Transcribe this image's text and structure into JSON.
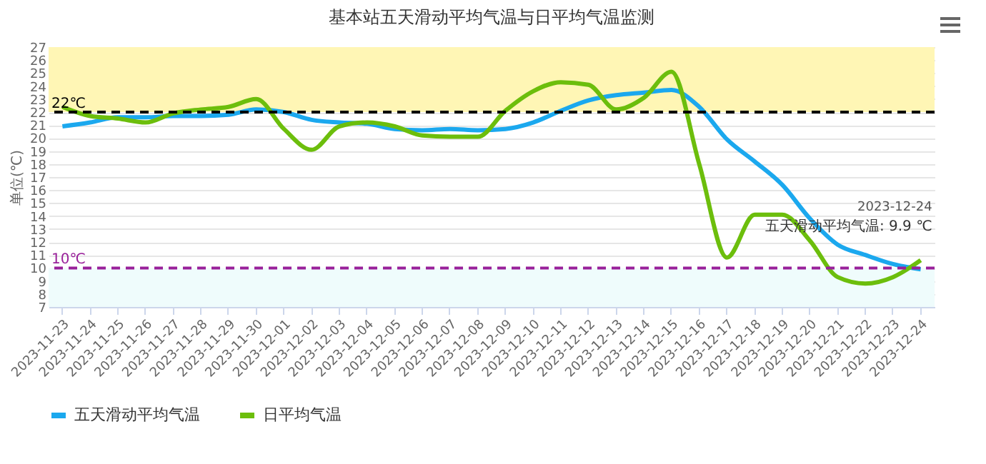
{
  "chart_data": {
    "type": "line",
    "title": "基本站五天滑动平均气温与日平均气温监测",
    "ylabel": "单位(℃)",
    "categories": [
      "2023-11-23",
      "2023-11-24",
      "2023-11-25",
      "2023-11-26",
      "2023-11-27",
      "2023-11-28",
      "2023-11-29",
      "2023-11-30",
      "2023-12-01",
      "2023-12-02",
      "2023-12-03",
      "2023-12-04",
      "2023-12-05",
      "2023-12-06",
      "2023-12-07",
      "2023-12-08",
      "2023-12-09",
      "2023-12-10",
      "2023-12-11",
      "2023-12-12",
      "2023-12-13",
      "2023-12-14",
      "2023-12-15",
      "2023-12-16",
      "2023-12-17",
      "2023-12-18",
      "2023-12-19",
      "2023-12-20",
      "2023-12-21",
      "2023-12-22",
      "2023-12-23",
      "2023-12-24"
    ],
    "series": [
      {
        "name": "五天滑动平均气温",
        "color": "#1ba8ee",
        "values": [
          20.9,
          21.2,
          21.6,
          21.6,
          21.7,
          21.7,
          21.8,
          22.2,
          22.0,
          21.4,
          21.2,
          21.1,
          20.7,
          20.6,
          20.7,
          20.6,
          20.7,
          21.2,
          22.1,
          22.9,
          23.3,
          23.5,
          23.7,
          22.4,
          19.9,
          18.2,
          16.4,
          13.8,
          11.8,
          11.0,
          10.3,
          9.9
        ]
      },
      {
        "name": "日平均气温",
        "color": "#6cbe0c",
        "values": [
          22.4,
          21.7,
          21.5,
          21.2,
          21.9,
          22.2,
          22.4,
          23.0,
          20.7,
          19.1,
          20.9,
          21.2,
          20.9,
          20.2,
          20.1,
          20.1,
          22.1,
          23.6,
          24.3,
          24.1,
          22.2,
          23.1,
          25.1,
          18.0,
          10.8,
          14.1,
          14.1,
          12.1,
          9.3,
          8.8,
          9.3,
          10.6
        ]
      }
    ],
    "ylim": [
      7,
      27
    ],
    "yticks": [
      7,
      8,
      9,
      10,
      11,
      12,
      13,
      14,
      15,
      16,
      17,
      18,
      19,
      20,
      21,
      22,
      23,
      24,
      25,
      26,
      27
    ],
    "grid": "y",
    "legend": "bottom",
    "marker": "none",
    "line_style": "solid",
    "ref_lines": [
      {
        "axis": "y",
        "value": 22,
        "label": "22℃",
        "color": "#000000",
        "line_style": "dashed"
      },
      {
        "axis": "y",
        "value": 10,
        "label": "10℃",
        "color": "#99219a",
        "line_style": "dashed"
      }
    ],
    "bands": [
      {
        "axis": "y",
        "from": 22,
        "to": 27,
        "color": "#fff6b5"
      },
      {
        "axis": "y",
        "from": 7,
        "to": 10,
        "color": "#effcfc"
      }
    ],
    "annotations": [
      "2023-12-24",
      {
        "text": "五天滑动平均气温: 9.9 ℃",
        "x": "2023-12-24",
        "y": 9.9
      }
    ]
  }
}
